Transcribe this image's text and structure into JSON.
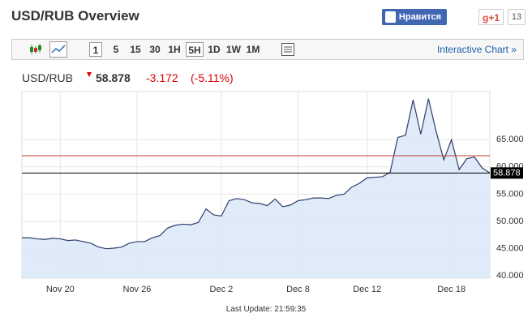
{
  "header": {
    "title": "USD/RUB Overview",
    "like": "Нравится",
    "gplus": "g+1",
    "gplus_count": "13",
    "toolbar": [
      "1",
      "5",
      "15",
      "30",
      "1H",
      "5H",
      "1D",
      "1W",
      "1M"
    ],
    "interactive": "Interactive Chart »",
    "symbol": "USD/RUB",
    "change": -3.172,
    "change_pct": "(-5.11%)",
    "last_update": "Last Update: 21:59:35"
  },
  "chart_data": {
    "type": "area",
    "color": "#2c3e6b",
    "fill": "#dce9f8",
    "grid": true,
    "watermark": "Investing",
    "watermark_suffix": ".com",
    "categories": [
      null,
      null,
      null,
      null,
      null,
      "Nov 20",
      null,
      null,
      null,
      null,
      null,
      null,
      null,
      null,
      null,
      "Nov 26",
      null,
      null,
      null,
      null,
      null,
      null,
      null,
      null,
      null,
      null,
      "Dec 2",
      null,
      null,
      null,
      null,
      null,
      null,
      null,
      null,
      null,
      "Dec 8",
      null,
      null,
      null,
      null,
      null,
      null,
      null,
      null,
      "Dec 12",
      null,
      null,
      null,
      null,
      null,
      null,
      null,
      null,
      null,
      null,
      "Dec 18",
      null,
      null,
      null,
      null,
      null
    ],
    "values": [
      47.0,
      47.0,
      46.8,
      46.7,
      46.9,
      46.8,
      46.5,
      46.6,
      46.3,
      46.0,
      45.3,
      45.0,
      45.1,
      45.3,
      46.0,
      46.3,
      46.3,
      47.0,
      47.4,
      48.8,
      49.3,
      49.5,
      49.4,
      49.8,
      52.3,
      51.2,
      51.0,
      53.8,
      54.2,
      54.0,
      53.4,
      53.3,
      52.9,
      54.1,
      52.7,
      53.0,
      53.8,
      54.0,
      54.3,
      54.3,
      54.2,
      54.8,
      55.0,
      56.3,
      57.0,
      58.0,
      58.1,
      58.2,
      59.0,
      65.4,
      65.8,
      72.3,
      66.0,
      72.5,
      66.5,
      61.3,
      65.0,
      59.5,
      61.5,
      61.8,
      59.8,
      58.9
    ],
    "last_price": 58.878,
    "previous_close": 62.05,
    "previous_close_color": "#c0392b",
    "ylim": [
      39.6,
      73.8
    ],
    "yticks": [
      {
        "value": 40,
        "label": "40.000"
      },
      {
        "value": 45,
        "label": "45.000"
      },
      {
        "value": 50,
        "label": "50.000"
      },
      {
        "value": 55,
        "label": "55.000"
      },
      {
        "value": 60,
        "label": "60.000"
      },
      {
        "value": 65,
        "label": "65.000"
      }
    ]
  }
}
